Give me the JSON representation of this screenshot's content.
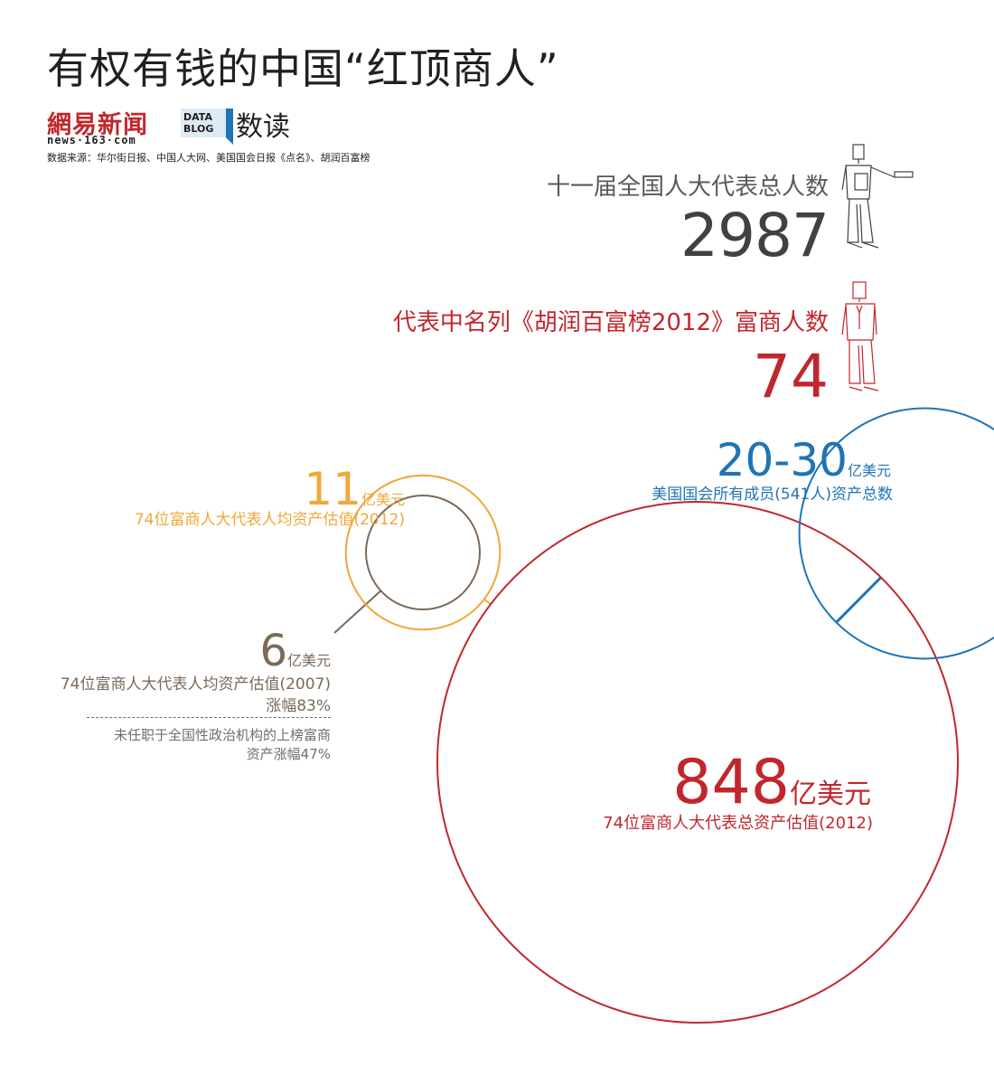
{
  "header": {
    "title": "有权有钱的中国“红顶商人”",
    "logo_text": "網易新闻",
    "logo_url": "news·163·com",
    "datablog_line1": "DATA",
    "datablog_line2": "BLOG",
    "datablog_name": "数读",
    "source": "数据来源：华尔街日报、中国人大网、美国国会日报《点名》、胡润百富榜"
  },
  "stats": {
    "total_label": "十一届全国人大代表总人数",
    "total_value": "2987",
    "rich_label": "代表中名列《胡润百富榜2012》富商人数",
    "rich_value": "74"
  },
  "colors": {
    "red": "#c0272d",
    "yellow": "#f0a83a",
    "blue": "#1f74b5",
    "brown": "#7b6a58",
    "gray": "#58595b"
  },
  "chart_data": {
    "type": "bubble",
    "bubbles": [
      {
        "id": "avg2012",
        "value": 11,
        "value_text": "11",
        "unit": "亿美元",
        "label": "74位富商人大代表人均资产估值(2012)",
        "color": "#f0a83a"
      },
      {
        "id": "avg2007",
        "value": 6,
        "value_text": "6",
        "unit": "亿美元",
        "label": "74位富商人大代表人均资产估值(2007)",
        "growth": "涨幅83%",
        "note_line1": "未任职于全国性政治机构的上榜富商",
        "note_line2": "资产涨幅47%",
        "color": "#7b6a58"
      },
      {
        "id": "us_congress",
        "value_range": [
          20,
          30
        ],
        "value_text": "20-30",
        "unit": "亿美元",
        "label": "美国国会所有成员(541人)资产总数",
        "color": "#1f74b5"
      },
      {
        "id": "total2012",
        "value": 848,
        "value_text": "848",
        "unit": "亿美元",
        "label": "74位富商人大代表总资产估值(2012)",
        "color": "#c0272d"
      }
    ]
  }
}
